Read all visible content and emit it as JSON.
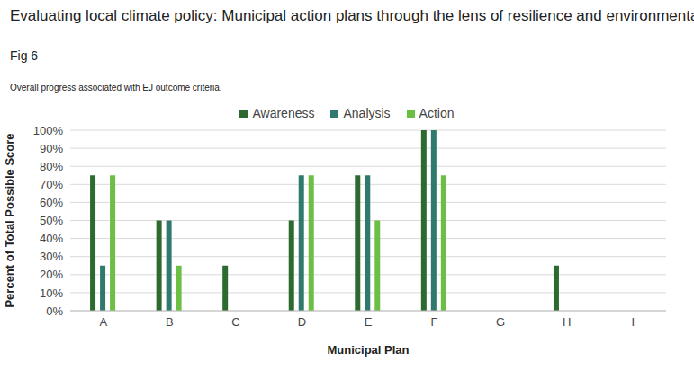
{
  "chart_data": {
    "type": "bar",
    "title": "Evaluating local climate policy: Municipal action plans through the lens of resilience and environmental justice",
    "figure_label": "Fig 6",
    "subtitle": "Overall progress associated with EJ outcome criteria.",
    "x_label": "Municipal Plan",
    "y_label": "Percent of Total Possible Score",
    "categories": [
      "A",
      "B",
      "C",
      "D",
      "E",
      "F",
      "G",
      "H",
      "I"
    ],
    "series": [
      {
        "name": "Awareness",
        "color": "#2d6a2f",
        "values": [
          75,
          50,
          25,
          50,
          75,
          100,
          0,
          25,
          0
        ]
      },
      {
        "name": "Analysis",
        "color": "#2f7a6c",
        "values": [
          25,
          50,
          0,
          75,
          75,
          100,
          0,
          0,
          0
        ]
      },
      {
        "name": "Action",
        "color": "#6cbf45",
        "values": [
          75,
          25,
          0,
          75,
          50,
          75,
          0,
          0,
          0
        ]
      }
    ],
    "ylim": [
      0,
      100
    ],
    "yticks": [
      {
        "value": 0,
        "label": "0%"
      },
      {
        "value": 10,
        "label": "10%"
      },
      {
        "value": 20,
        "label": "20%"
      },
      {
        "value": 30,
        "label": "30%"
      },
      {
        "value": 40,
        "label": "40%"
      },
      {
        "value": 50,
        "label": "50%"
      },
      {
        "value": 60,
        "label": "60%"
      },
      {
        "value": 70,
        "label": "70%"
      },
      {
        "value": 80,
        "label": "80%"
      },
      {
        "value": 90,
        "label": "90%"
      },
      {
        "value": 100,
        "label": "100%"
      }
    ],
    "grid": true,
    "legend": "top"
  }
}
